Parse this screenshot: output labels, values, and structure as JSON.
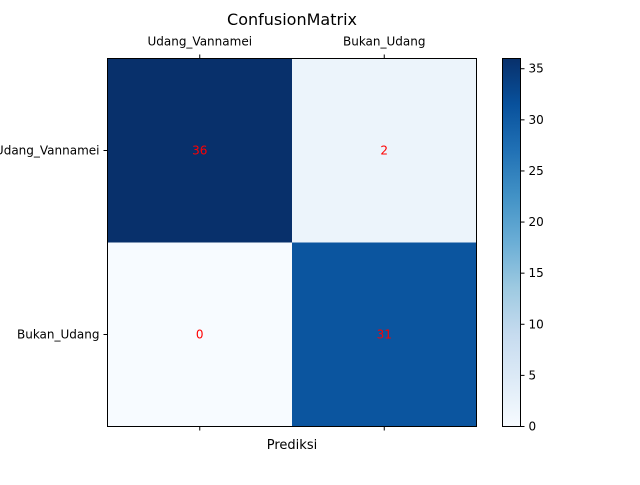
{
  "chart_data": {
    "type": "heatmap",
    "title": "ConfusionMatrix",
    "xlabel": "Prediksi",
    "ylabel": "",
    "x_categories": [
      "Udang_Vannamei",
      "Bukan_Udang"
    ],
    "y_categories": [
      "Udang_Vannamei",
      "Bukan_Udang"
    ],
    "cells": [
      [
        36,
        2
      ],
      [
        0,
        31
      ]
    ],
    "value_label_color": "#ff0000",
    "colormap": "Blues",
    "color_range": [
      0,
      36
    ],
    "colorbar": {
      "ticks": [
        0,
        5,
        10,
        15,
        20,
        25,
        30,
        35
      ],
      "tick_labels": [
        "0",
        "5",
        "10",
        "15",
        "20",
        "25",
        "30",
        "35"
      ]
    },
    "x_tick_position": "top"
  }
}
